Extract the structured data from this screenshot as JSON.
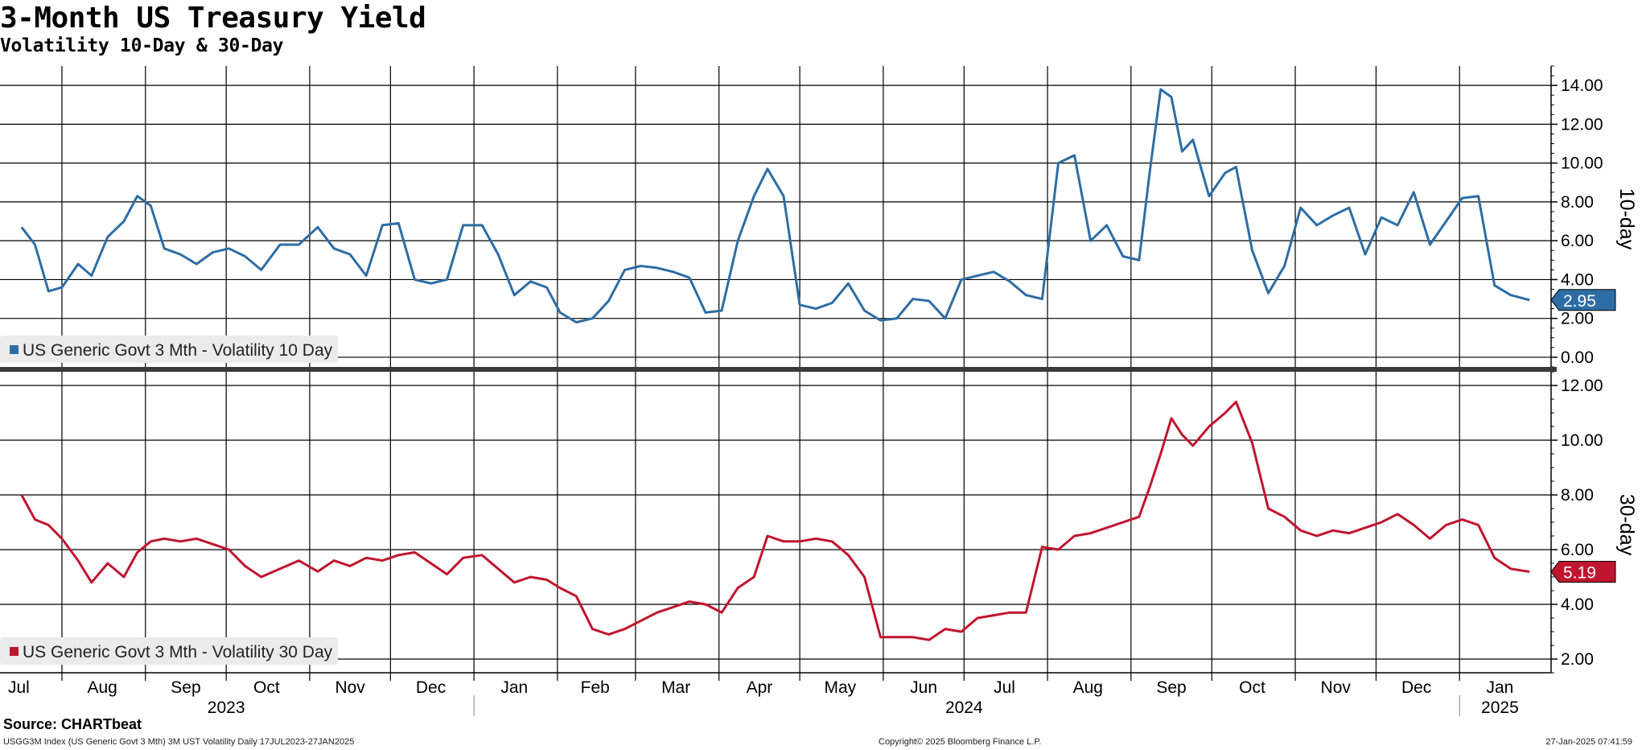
{
  "header": {
    "title": "3-Month US Treasury Yield",
    "subtitle": "Volatility 10-Day & 30-Day"
  },
  "footer": {
    "source": "Source: CHARTbeat",
    "index_info": "USGG3M Index (US Generic Govt 3 Mth) 3M UST Volatility  Daily 17JUL2023-27JAN2025",
    "copyright": "Copyright© 2025 Bloomberg Finance L.P.",
    "timestamp": "27-Jan-2025 07:41:59"
  },
  "colors": {
    "series_10d": "#2e6da4",
    "series_30d": "#c0152f",
    "grid": "#000000"
  },
  "chart_data": [
    {
      "type": "line",
      "panel": "upper",
      "axis_title": "10-day",
      "ylim": [
        -0.5,
        15
      ],
      "yticks": [
        0,
        2,
        4,
        6,
        8,
        10,
        12,
        14
      ],
      "ytick_labels": [
        "0.00",
        "2.00",
        "4.00",
        "6.00",
        "8.00",
        "10.00",
        "12.00",
        "14.00"
      ],
      "legend": "US Generic Govt 3 Mth - Volatility 10 Day",
      "last_value_label": "2.95",
      "series": [
        {
          "name": "US Generic Govt 3 Mth - Volatility 10 Day",
          "color": "#2e6da4",
          "x": [
            "2023-07-17",
            "2023-07-22",
            "2023-07-27",
            "2023-08-01",
            "2023-08-07",
            "2023-08-12",
            "2023-08-18",
            "2023-08-24",
            "2023-08-29",
            "2023-09-03",
            "2023-09-08",
            "2023-09-14",
            "2023-09-20",
            "2023-09-26",
            "2023-10-02",
            "2023-10-08",
            "2023-10-14",
            "2023-10-21",
            "2023-10-28",
            "2023-11-04",
            "2023-11-10",
            "2023-11-16",
            "2023-11-22",
            "2023-11-28",
            "2023-12-04",
            "2023-12-10",
            "2023-12-16",
            "2023-12-22",
            "2023-12-28",
            "2024-01-04",
            "2024-01-10",
            "2024-01-16",
            "2024-01-22",
            "2024-01-28",
            "2024-02-02",
            "2024-02-08",
            "2024-02-14",
            "2024-02-20",
            "2024-02-26",
            "2024-03-03",
            "2024-03-09",
            "2024-03-15",
            "2024-03-21",
            "2024-03-27",
            "2024-04-02",
            "2024-04-08",
            "2024-04-14",
            "2024-04-19",
            "2024-04-25",
            "2024-05-01",
            "2024-05-07",
            "2024-05-13",
            "2024-05-19",
            "2024-05-25",
            "2024-05-31",
            "2024-06-06",
            "2024-06-12",
            "2024-06-18",
            "2024-06-24",
            "2024-06-30",
            "2024-07-06",
            "2024-07-12",
            "2024-07-18",
            "2024-07-24",
            "2024-07-30",
            "2024-08-05",
            "2024-08-11",
            "2024-08-17",
            "2024-08-23",
            "2024-08-29",
            "2024-09-04",
            "2024-09-08",
            "2024-09-12",
            "2024-09-16",
            "2024-09-20",
            "2024-09-24",
            "2024-09-30",
            "2024-10-06",
            "2024-10-10",
            "2024-10-16",
            "2024-10-22",
            "2024-10-28",
            "2024-11-03",
            "2024-11-09",
            "2024-11-15",
            "2024-11-21",
            "2024-11-27",
            "2024-12-03",
            "2024-12-09",
            "2024-12-15",
            "2024-12-21",
            "2024-12-27",
            "2025-01-02",
            "2025-01-08",
            "2025-01-14",
            "2025-01-20",
            "2025-01-27"
          ],
          "values": [
            6.7,
            5.8,
            3.4,
            3.6,
            4.8,
            4.2,
            6.2,
            7.0,
            8.3,
            7.8,
            5.6,
            5.3,
            4.8,
            5.4,
            5.6,
            5.2,
            4.5,
            5.8,
            5.8,
            6.7,
            5.6,
            5.3,
            4.2,
            6.8,
            6.9,
            4.0,
            3.8,
            4.0,
            6.8,
            6.8,
            5.3,
            3.2,
            3.9,
            3.6,
            2.3,
            1.8,
            2.0,
            2.9,
            4.5,
            4.7,
            4.6,
            4.4,
            4.1,
            2.3,
            2.4,
            6.0,
            8.3,
            9.7,
            8.3,
            2.7,
            2.5,
            2.8,
            3.8,
            2.4,
            1.9,
            2.0,
            3.0,
            2.9,
            2.0,
            4.0,
            4.2,
            4.4,
            3.9,
            3.2,
            3.0,
            10.0,
            10.4,
            6.0,
            6.8,
            5.2,
            5.0,
            9.6,
            13.8,
            13.4,
            10.6,
            11.2,
            8.3,
            9.5,
            9.8,
            5.5,
            3.3,
            4.7,
            7.7,
            6.8,
            7.3,
            7.7,
            5.3,
            7.2,
            6.8,
            8.5,
            5.8,
            7.0,
            8.2,
            8.3,
            3.7,
            3.2,
            2.95
          ]
        }
      ]
    },
    {
      "type": "line",
      "panel": "lower",
      "axis_title": "30-day",
      "ylim": [
        1.5,
        12.5
      ],
      "yticks": [
        2,
        4,
        6,
        8,
        10,
        12
      ],
      "ytick_labels": [
        "2.00",
        "4.00",
        "6.00",
        "8.00",
        "10.00",
        "12.00"
      ],
      "legend": "US Generic Govt 3 Mth - Volatility 30 Day",
      "last_value_label": "5.19",
      "x_month_labels": [
        "Jul",
        "Aug",
        "Sep",
        "Oct",
        "Nov",
        "Dec",
        "Jan",
        "Feb",
        "Mar",
        "Apr",
        "May",
        "Jun",
        "Jul",
        "Aug",
        "Sep",
        "Oct",
        "Nov",
        "Dec",
        "Jan"
      ],
      "x_year_labels": [
        "2023",
        "2024",
        "2025"
      ],
      "series": [
        {
          "name": "US Generic Govt 3 Mth - Volatility 30 Day",
          "color": "#c0152f",
          "x": [
            "2023-07-17",
            "2023-07-22",
            "2023-07-27",
            "2023-08-01",
            "2023-08-07",
            "2023-08-12",
            "2023-08-18",
            "2023-08-24",
            "2023-08-29",
            "2023-09-03",
            "2023-09-08",
            "2023-09-14",
            "2023-09-20",
            "2023-09-26",
            "2023-10-02",
            "2023-10-08",
            "2023-10-14",
            "2023-10-21",
            "2023-10-28",
            "2023-11-04",
            "2023-11-10",
            "2023-11-16",
            "2023-11-22",
            "2023-11-28",
            "2023-12-04",
            "2023-12-10",
            "2023-12-16",
            "2023-12-22",
            "2023-12-28",
            "2024-01-04",
            "2024-01-10",
            "2024-01-16",
            "2024-01-22",
            "2024-01-28",
            "2024-02-02",
            "2024-02-08",
            "2024-02-14",
            "2024-02-20",
            "2024-02-26",
            "2024-03-03",
            "2024-03-09",
            "2024-03-15",
            "2024-03-21",
            "2024-03-27",
            "2024-04-02",
            "2024-04-08",
            "2024-04-14",
            "2024-04-19",
            "2024-04-25",
            "2024-05-01",
            "2024-05-07",
            "2024-05-13",
            "2024-05-19",
            "2024-05-25",
            "2024-05-31",
            "2024-06-06",
            "2024-06-12",
            "2024-06-18",
            "2024-06-24",
            "2024-06-30",
            "2024-07-06",
            "2024-07-12",
            "2024-07-18",
            "2024-07-24",
            "2024-07-30",
            "2024-08-05",
            "2024-08-11",
            "2024-08-17",
            "2024-08-23",
            "2024-08-29",
            "2024-09-04",
            "2024-09-08",
            "2024-09-12",
            "2024-09-16",
            "2024-09-20",
            "2024-09-24",
            "2024-09-30",
            "2024-10-06",
            "2024-10-10",
            "2024-10-16",
            "2024-10-22",
            "2024-10-28",
            "2024-11-03",
            "2024-11-09",
            "2024-11-15",
            "2024-11-21",
            "2024-11-27",
            "2024-12-03",
            "2024-12-09",
            "2024-12-15",
            "2024-12-21",
            "2024-12-27",
            "2025-01-02",
            "2025-01-08",
            "2025-01-14",
            "2025-01-20",
            "2025-01-27"
          ],
          "values": [
            8.0,
            7.1,
            6.9,
            6.4,
            5.6,
            4.8,
            5.5,
            5.0,
            5.9,
            6.3,
            6.4,
            6.3,
            6.4,
            6.2,
            6.0,
            5.4,
            5.0,
            5.3,
            5.6,
            5.2,
            5.6,
            5.4,
            5.7,
            5.6,
            5.8,
            5.9,
            5.5,
            5.1,
            5.7,
            5.8,
            5.3,
            4.8,
            5.0,
            4.9,
            4.6,
            4.3,
            3.1,
            2.9,
            3.1,
            3.4,
            3.7,
            3.9,
            4.1,
            4.0,
            3.7,
            4.6,
            5.0,
            6.5,
            6.3,
            6.3,
            6.4,
            6.3,
            5.8,
            5.0,
            2.8,
            2.8,
            2.8,
            2.7,
            3.1,
            3.0,
            3.5,
            3.6,
            3.7,
            3.7,
            6.1,
            6.0,
            6.5,
            6.6,
            6.8,
            7.0,
            7.2,
            8.3,
            9.5,
            10.8,
            10.2,
            9.8,
            10.5,
            11.0,
            11.4,
            9.9,
            7.5,
            7.2,
            6.7,
            6.5,
            6.7,
            6.6,
            6.8,
            7.0,
            7.3,
            6.9,
            6.4,
            6.9,
            7.1,
            6.9,
            5.7,
            5.3,
            5.19
          ]
        }
      ]
    }
  ]
}
